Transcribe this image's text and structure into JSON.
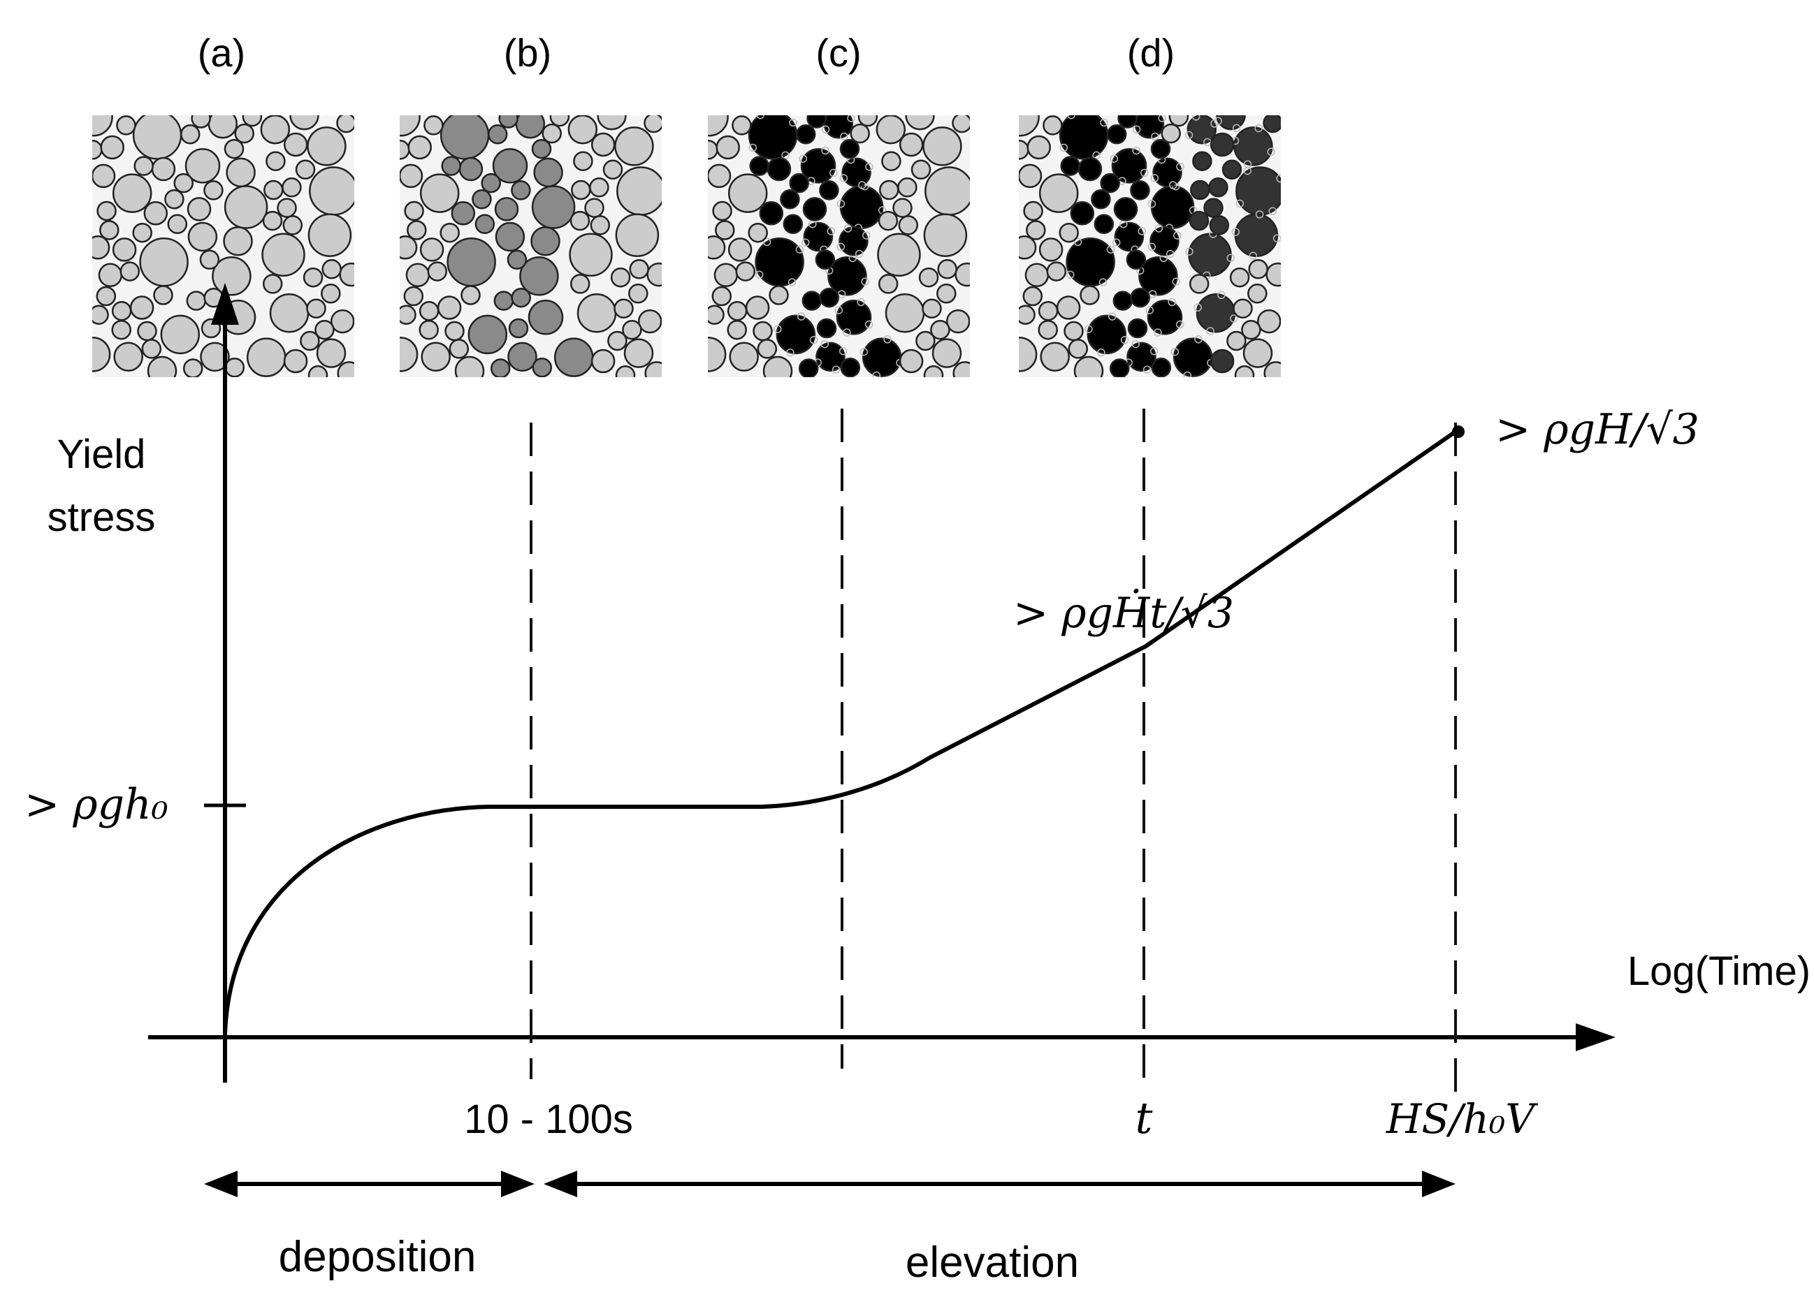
{
  "panels": [
    {
      "label": "(a)",
      "scheme": "uniform"
    },
    {
      "label": "(b)",
      "scheme": "grey-band"
    },
    {
      "label": "(c)",
      "scheme": "black-band"
    },
    {
      "label": "(d)",
      "scheme": "black-network"
    }
  ],
  "axes": {
    "y_title_line1": "Yield",
    "y_title_line2": "stress",
    "x_title": "Log(Time)"
  },
  "y_labels": {
    "plateau": "> ρgh₀",
    "mid": "> ρgḢt/√3",
    "end": "> ρgH/√3"
  },
  "x_labels": {
    "deposition_end": "10 - 100s",
    "t": "t",
    "end": "HS/h₀V"
  },
  "phases": {
    "deposition": "deposition",
    "elevation": "elevation"
  },
  "colors": {
    "line": "#000000",
    "dashed": "#111111",
    "particle_light": "#cccccc",
    "particle_grey": "#8a8a8a",
    "particle_dark": "#333333",
    "particle_black": "#000000"
  }
}
